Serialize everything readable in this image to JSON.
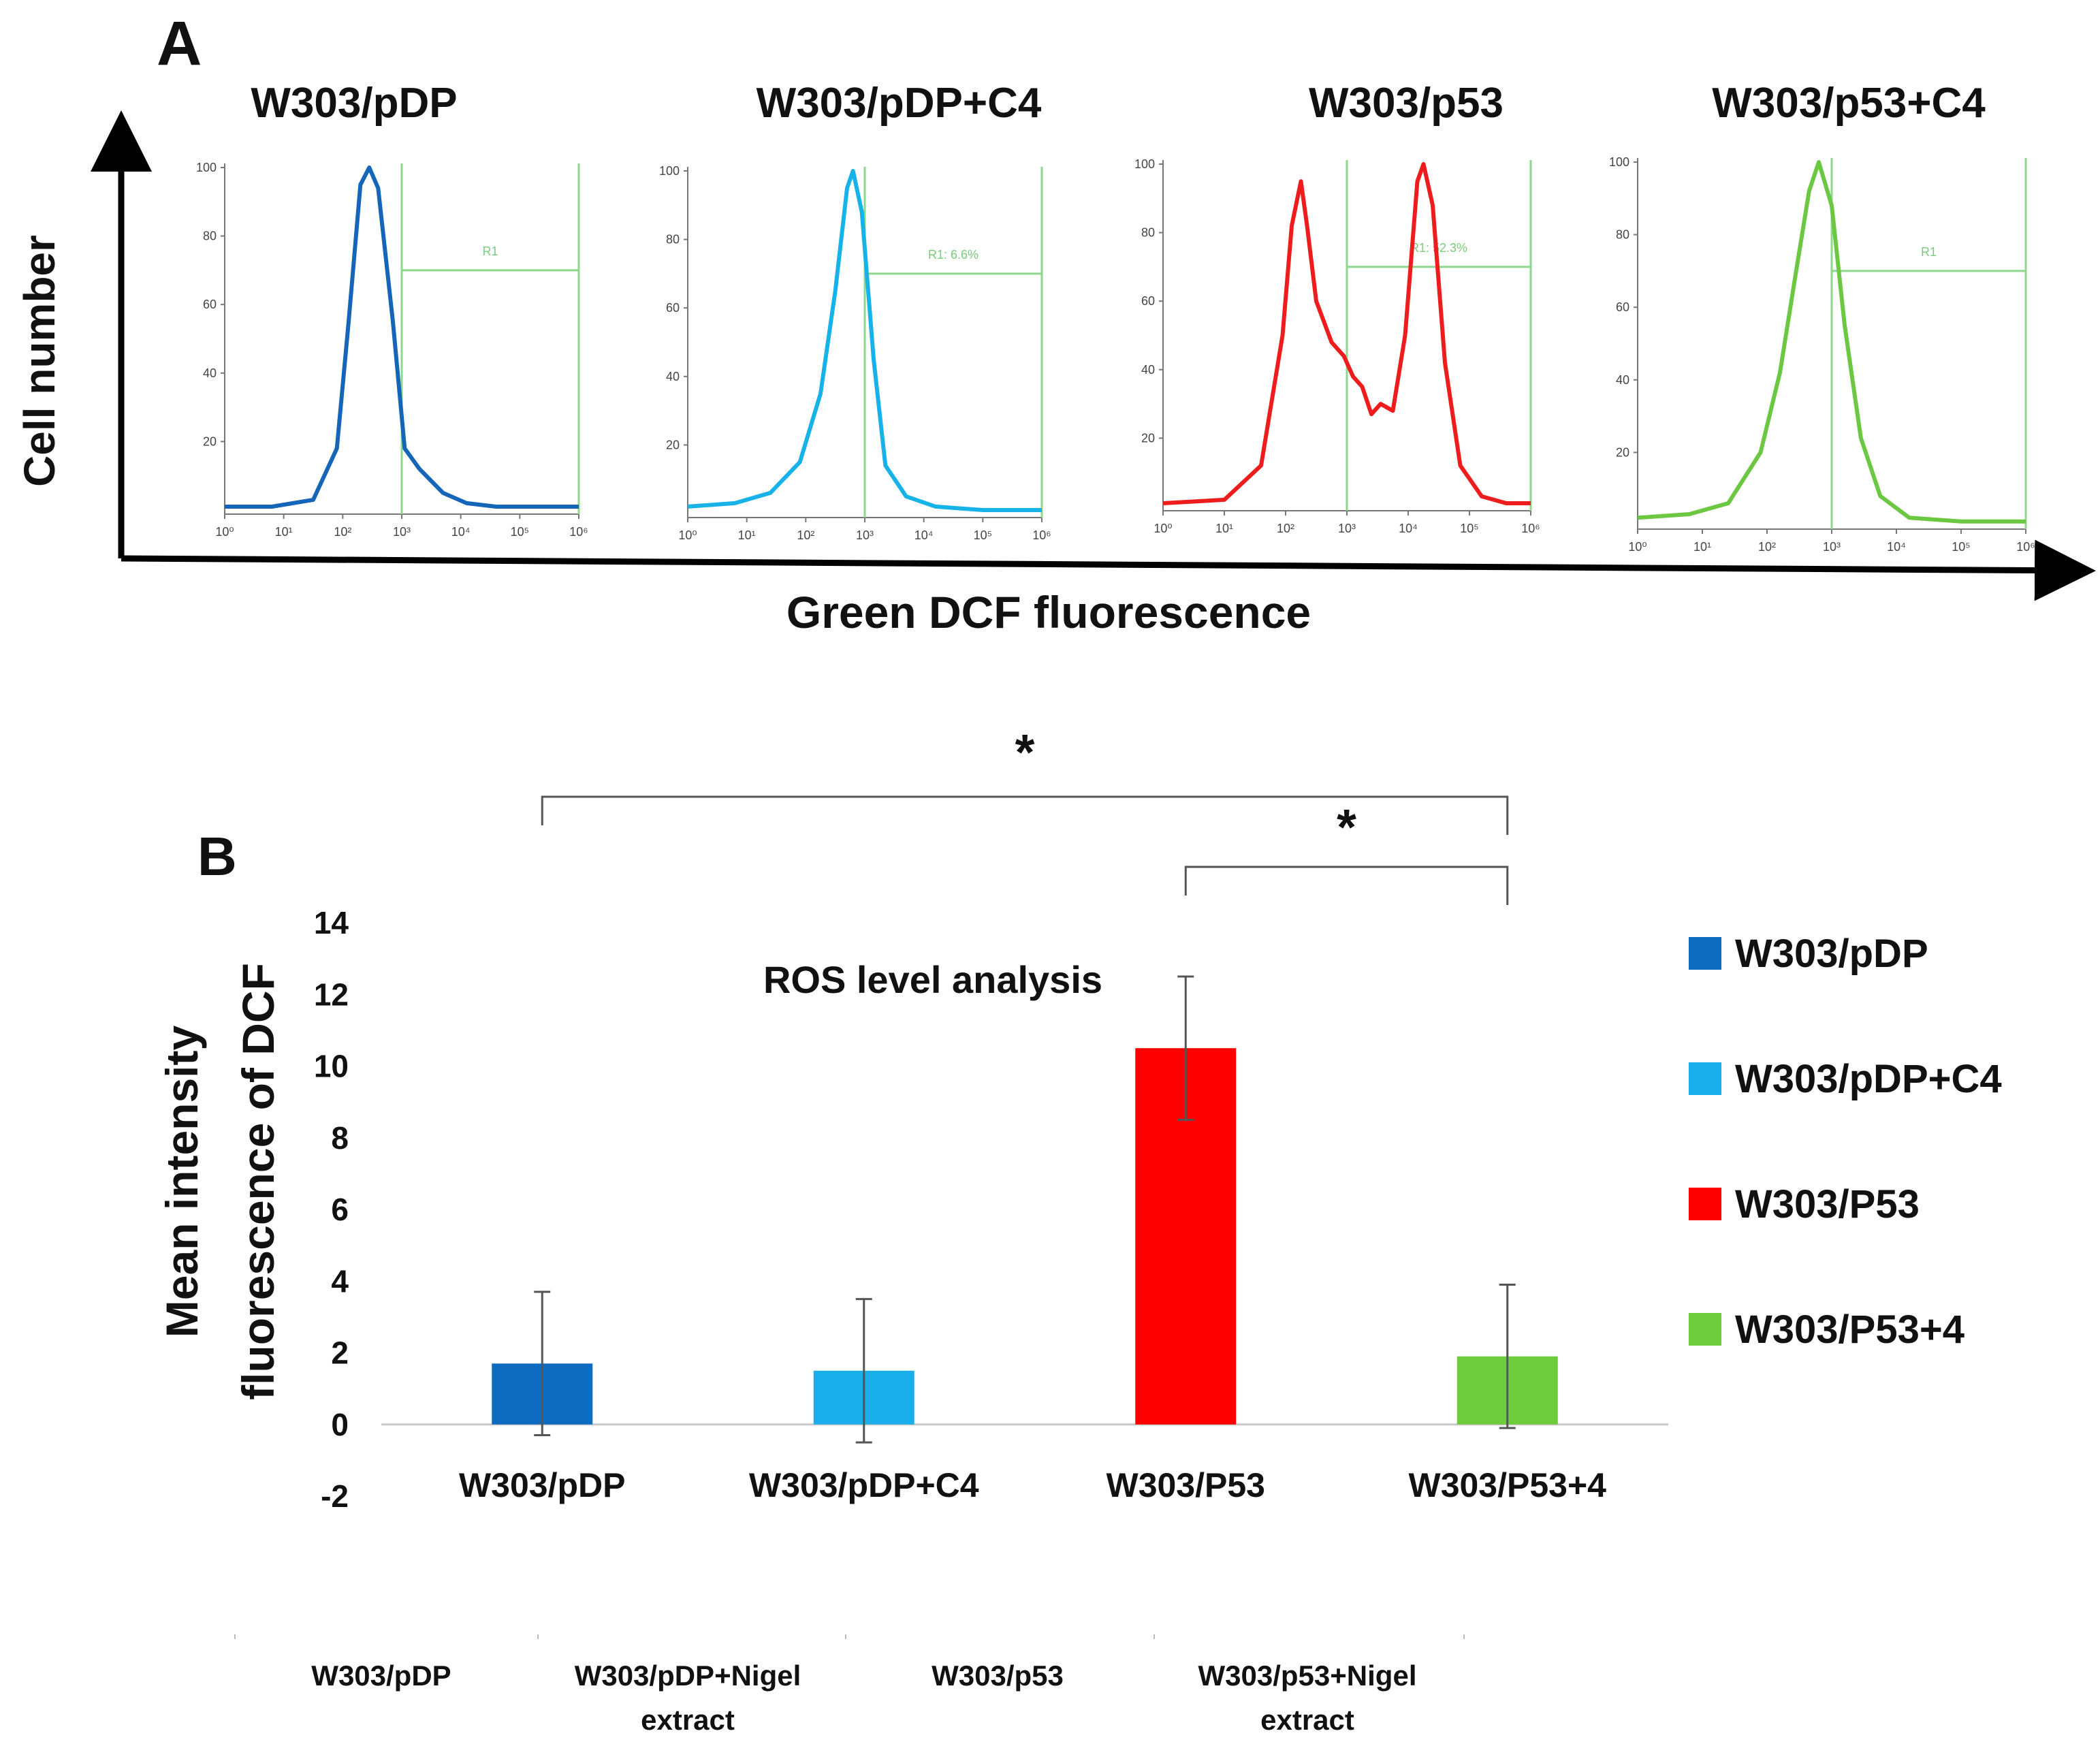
{
  "chart_data": [
    {
      "panel": "A",
      "type": "line",
      "subtype": "flow-cytometry-histograms",
      "xlabel": "Green DCF fluorescence",
      "ylabel": "Cell number",
      "x_scale": "log",
      "y_ticks": [
        20,
        40,
        60,
        80,
        100
      ],
      "panels": [
        {
          "title": "W303/pDP",
          "color": "#1565b8",
          "gate_label": "R1",
          "x_ticks": [
            "10⁰",
            "10¹",
            "10²",
            "10³",
            "10⁴",
            "10⁵",
            "10⁶"
          ],
          "xlim": [
            0,
            6
          ],
          "gate": [
            3,
            6
          ],
          "curve": [
            [
              0,
              1
            ],
            [
              0.8,
              1
            ],
            [
              1.5,
              3
            ],
            [
              1.9,
              18
            ],
            [
              2.1,
              55
            ],
            [
              2.3,
              95
            ],
            [
              2.45,
              100
            ],
            [
              2.6,
              94
            ],
            [
              2.85,
              55
            ],
            [
              3.05,
              18
            ],
            [
              3.3,
              12
            ],
            [
              3.7,
              5
            ],
            [
              4.1,
              2
            ],
            [
              4.6,
              1
            ],
            [
              6,
              1
            ]
          ]
        },
        {
          "title": "W303/pDP+C4",
          "color": "#17b3e8",
          "gate_label": "R1: 6.6%",
          "x_ticks": [
            "10⁰",
            "10¹",
            "10²",
            "10³",
            "10⁴",
            "10⁵",
            "10⁶"
          ],
          "xlim": [
            0,
            6
          ],
          "gate": [
            3,
            6
          ],
          "curve": [
            [
              0,
              2
            ],
            [
              0.8,
              3
            ],
            [
              1.4,
              6
            ],
            [
              1.9,
              15
            ],
            [
              2.25,
              35
            ],
            [
              2.5,
              65
            ],
            [
              2.7,
              95
            ],
            [
              2.8,
              100
            ],
            [
              2.95,
              88
            ],
            [
              3.15,
              45
            ],
            [
              3.35,
              14
            ],
            [
              3.7,
              5
            ],
            [
              4.2,
              2
            ],
            [
              5,
              1
            ],
            [
              6,
              1
            ]
          ]
        },
        {
          "title": "W303/p53",
          "color": "#ee1c1c",
          "gate_label": "R1: 52.3%",
          "x_ticks": [
            "10⁰",
            "10¹",
            "10²",
            "10³",
            "10⁴",
            "10⁵",
            "10⁶"
          ],
          "xlim": [
            0,
            6
          ],
          "gate": [
            3,
            6
          ],
          "curve": [
            [
              0,
              1
            ],
            [
              1,
              2
            ],
            [
              1.6,
              12
            ],
            [
              1.95,
              50
            ],
            [
              2.1,
              82
            ],
            [
              2.25,
              95
            ],
            [
              2.35,
              82
            ],
            [
              2.5,
              60
            ],
            [
              2.75,
              48
            ],
            [
              2.95,
              44
            ],
            [
              3.1,
              38
            ],
            [
              3.25,
              35
            ],
            [
              3.4,
              27
            ],
            [
              3.55,
              30
            ],
            [
              3.75,
              28
            ],
            [
              3.95,
              50
            ],
            [
              4.15,
              95
            ],
            [
              4.25,
              100
            ],
            [
              4.4,
              88
            ],
            [
              4.6,
              42
            ],
            [
              4.85,
              12
            ],
            [
              5.2,
              3
            ],
            [
              5.6,
              1
            ],
            [
              6,
              1
            ]
          ]
        },
        {
          "title": "W303/p53+C4",
          "color": "#6cc843",
          "gate_label": "R1",
          "x_ticks": [
            "10⁰",
            "10¹",
            "10²",
            "10³",
            "10⁴",
            "10⁵",
            "10⁶"
          ],
          "xlim": [
            0,
            6
          ],
          "gate": [
            3,
            6
          ],
          "curve": [
            [
              0,
              2
            ],
            [
              0.8,
              3
            ],
            [
              1.4,
              6
            ],
            [
              1.9,
              20
            ],
            [
              2.2,
              42
            ],
            [
              2.45,
              70
            ],
            [
              2.65,
              92
            ],
            [
              2.8,
              100
            ],
            [
              3,
              88
            ],
            [
              3.2,
              55
            ],
            [
              3.45,
              24
            ],
            [
              3.75,
              8
            ],
            [
              4.2,
              2
            ],
            [
              5,
              1
            ],
            [
              6,
              1
            ]
          ]
        }
      ]
    },
    {
      "panel": "B",
      "type": "bar",
      "title": "ROS level analysis",
      "ylabel_line1": "Mean intensity",
      "ylabel_line2": "fluorescence of DCF",
      "ylim": [
        -2,
        14
      ],
      "y_ticks": [
        -2,
        0,
        2,
        4,
        6,
        8,
        10,
        12,
        14
      ],
      "categories": [
        "W303/pDP",
        "W303/pDP+C4",
        "W303/P53",
        "W303/P53+4"
      ],
      "values": [
        1.7,
        1.5,
        10.5,
        1.9
      ],
      "errors": [
        2.0,
        2.0,
        2.0,
        2.0
      ],
      "colors": [
        "#0e6cc0",
        "#1aaeeb",
        "#ff0000",
        "#6ccc3c"
      ],
      "legend": [
        "W303/pDP",
        "W303/pDP+C4",
        "W303/P53",
        "W303/P53+4"
      ],
      "legend_position": "right",
      "significance": [
        {
          "from": 0,
          "to": 3,
          "label": "*"
        },
        {
          "from": 2,
          "to": 3,
          "label": "*"
        }
      ],
      "footer_labels": [
        {
          "line1": "W303/pDP",
          "line2": ""
        },
        {
          "line1": "W303/pDP+Nigel",
          "line2": "extract"
        },
        {
          "line1": "W303/p53",
          "line2": ""
        },
        {
          "line1": "W303/p53+Nigel",
          "line2": "extract"
        }
      ]
    }
  ],
  "labels": {
    "panel_a": "A",
    "panel_b": "B"
  }
}
